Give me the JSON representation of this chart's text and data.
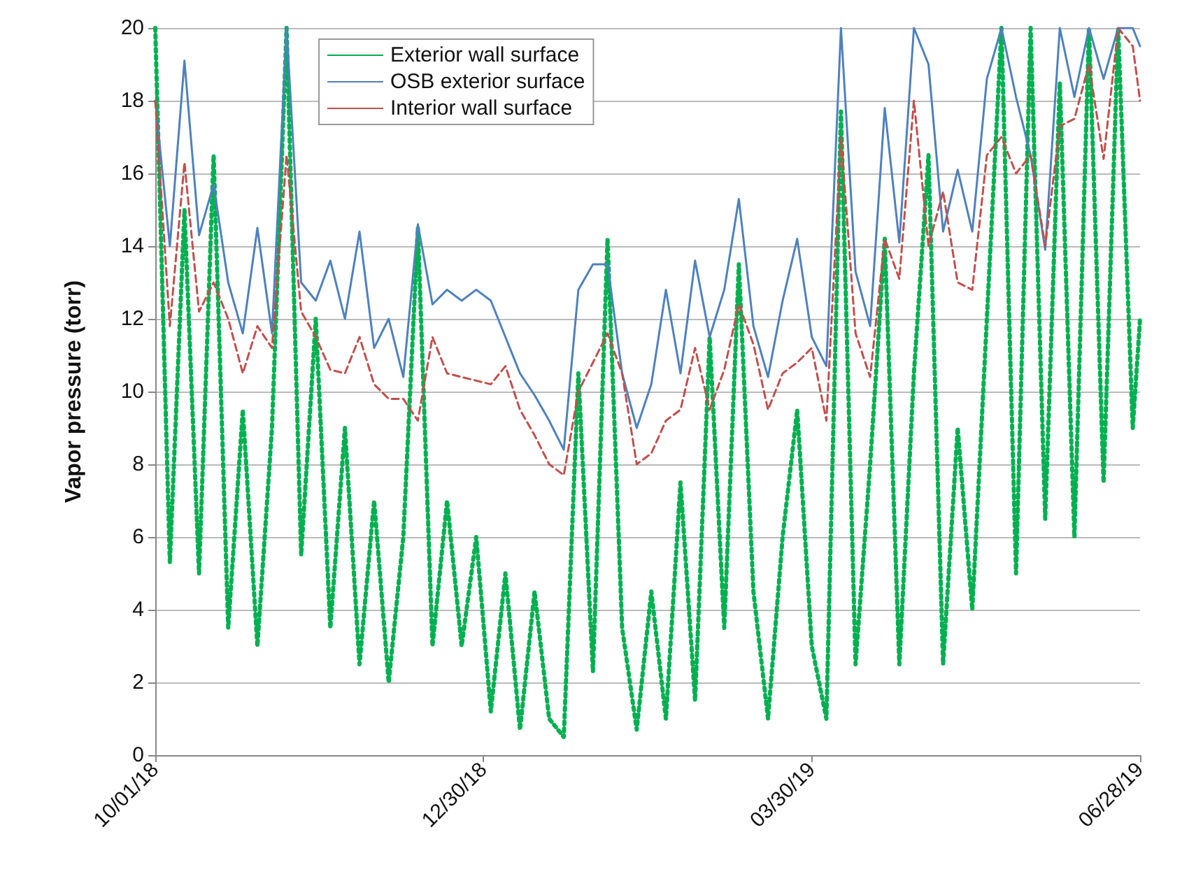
{
  "chart_data": {
    "type": "line",
    "ylabel": "Vapor pressure (torr)",
    "x": [
      "2018-10-01",
      "2018-10-05",
      "2018-10-09",
      "2018-10-13",
      "2018-10-17",
      "2018-10-21",
      "2018-10-25",
      "2018-10-29",
      "2018-11-02",
      "2018-11-06",
      "2018-11-10",
      "2018-11-14",
      "2018-11-18",
      "2018-11-22",
      "2018-11-26",
      "2018-11-30",
      "2018-12-04",
      "2018-12-08",
      "2018-12-12",
      "2018-12-16",
      "2018-12-20",
      "2018-12-24",
      "2018-12-28",
      "2019-01-01",
      "2019-01-05",
      "2019-01-09",
      "2019-01-13",
      "2019-01-17",
      "2019-01-21",
      "2019-01-25",
      "2019-01-29",
      "2019-02-02",
      "2019-02-06",
      "2019-02-10",
      "2019-02-14",
      "2019-02-18",
      "2019-02-22",
      "2019-02-26",
      "2019-03-02",
      "2019-03-06",
      "2019-03-10",
      "2019-03-14",
      "2019-03-18",
      "2019-03-22",
      "2019-03-26",
      "2019-03-30",
      "2019-04-03",
      "2019-04-07",
      "2019-04-11",
      "2019-04-15",
      "2019-04-19",
      "2019-04-23",
      "2019-04-27",
      "2019-05-01",
      "2019-05-05",
      "2019-05-09",
      "2019-05-13",
      "2019-05-17",
      "2019-05-21",
      "2019-05-25",
      "2019-05-29",
      "2019-06-02",
      "2019-06-06",
      "2019-06-10",
      "2019-06-14",
      "2019-06-18",
      "2019-06-22",
      "2019-06-26",
      "2019-06-28"
    ],
    "series": [
      {
        "name": "Exterior wall surface",
        "color": "#00b050",
        "line_style": "dotted",
        "values": [
          20,
          5.3,
          15,
          5,
          16.5,
          3.5,
          9.5,
          3,
          9,
          20,
          5.5,
          12,
          3.5,
          9,
          2.5,
          7,
          2,
          6,
          14.5,
          3,
          7,
          3,
          6,
          1.2,
          5,
          0.7,
          4.5,
          1,
          0.5,
          10.5,
          2.3,
          14.2,
          3.5,
          0.7,
          4.5,
          1,
          7.5,
          1.5,
          11.5,
          3.5,
          13.5,
          4.5,
          1,
          6,
          9.5,
          3,
          1,
          17.7,
          2.5,
          8,
          14.2,
          2.5,
          10.5,
          16.5,
          2.5,
          9,
          4,
          12,
          20,
          5,
          20,
          6.5,
          18.5,
          6,
          20,
          7.5,
          20,
          9,
          12
        ]
      },
      {
        "name": "OSB exterior surface",
        "color": "#4f81bd",
        "line_style": "solid",
        "values": [
          18,
          14,
          19.1,
          14.3,
          15.7,
          13,
          11.6,
          14.5,
          11.6,
          20,
          13,
          12.5,
          13.6,
          12,
          14.4,
          11.2,
          12,
          10.4,
          14.6,
          12.4,
          12.8,
          12.5,
          12.8,
          12.5,
          11.5,
          10.5,
          9.9,
          9.2,
          8.4,
          12.8,
          13.5,
          13.5,
          10.5,
          9,
          10.2,
          12.8,
          10.5,
          13.6,
          11.5,
          12.8,
          15.3,
          11.8,
          10.4,
          12.5,
          14.2,
          11.5,
          10.7,
          20,
          13.3,
          11.8,
          17.8,
          14.1,
          20,
          19,
          14.4,
          16.1,
          14.4,
          18.6,
          20,
          18.1,
          16.5,
          13.9,
          20,
          18.1,
          20,
          18.6,
          20,
          20,
          19.5
        ]
      },
      {
        "name": "Interior wall surface",
        "color": "#c0504d",
        "line_style": "dashed",
        "values": [
          18,
          11.8,
          16.3,
          12.2,
          13,
          12,
          10.5,
          11.8,
          11.2,
          16.5,
          12.2,
          11.5,
          10.6,
          10.5,
          11.5,
          10.2,
          9.8,
          9.8,
          9.2,
          11.5,
          10.5,
          10.4,
          10.3,
          10.2,
          10.7,
          9.5,
          8.8,
          8,
          7.7,
          10,
          10.8,
          11.6,
          10.5,
          8,
          8.3,
          9.2,
          9.5,
          11.2,
          9.5,
          10.6,
          12.4,
          11.3,
          9.5,
          10.5,
          10.8,
          11.2,
          9.2,
          17,
          11.6,
          10.4,
          14.2,
          13.1,
          18,
          14,
          15.5,
          13,
          12.8,
          16.5,
          17,
          16,
          16.5,
          14,
          17.3,
          17.5,
          19,
          16.4,
          20,
          19.5,
          18
        ]
      }
    ],
    "xlim": [
      "2018-10-01",
      "2019-06-28"
    ],
    "xticks": [
      {
        "value": "2018-10-01",
        "label": "10/01/18"
      },
      {
        "value": "2018-12-30",
        "label": "12/30/18"
      },
      {
        "value": "2019-03-30",
        "label": "03/30/19"
      },
      {
        "value": "2019-06-28",
        "label": "06/28/19"
      }
    ],
    "ylim": [
      0,
      20
    ],
    "yticks": [
      0,
      2,
      4,
      6,
      8,
      10,
      12,
      14,
      16,
      18,
      20
    ],
    "grid": "y",
    "legend": "top left",
    "marker": "none"
  }
}
